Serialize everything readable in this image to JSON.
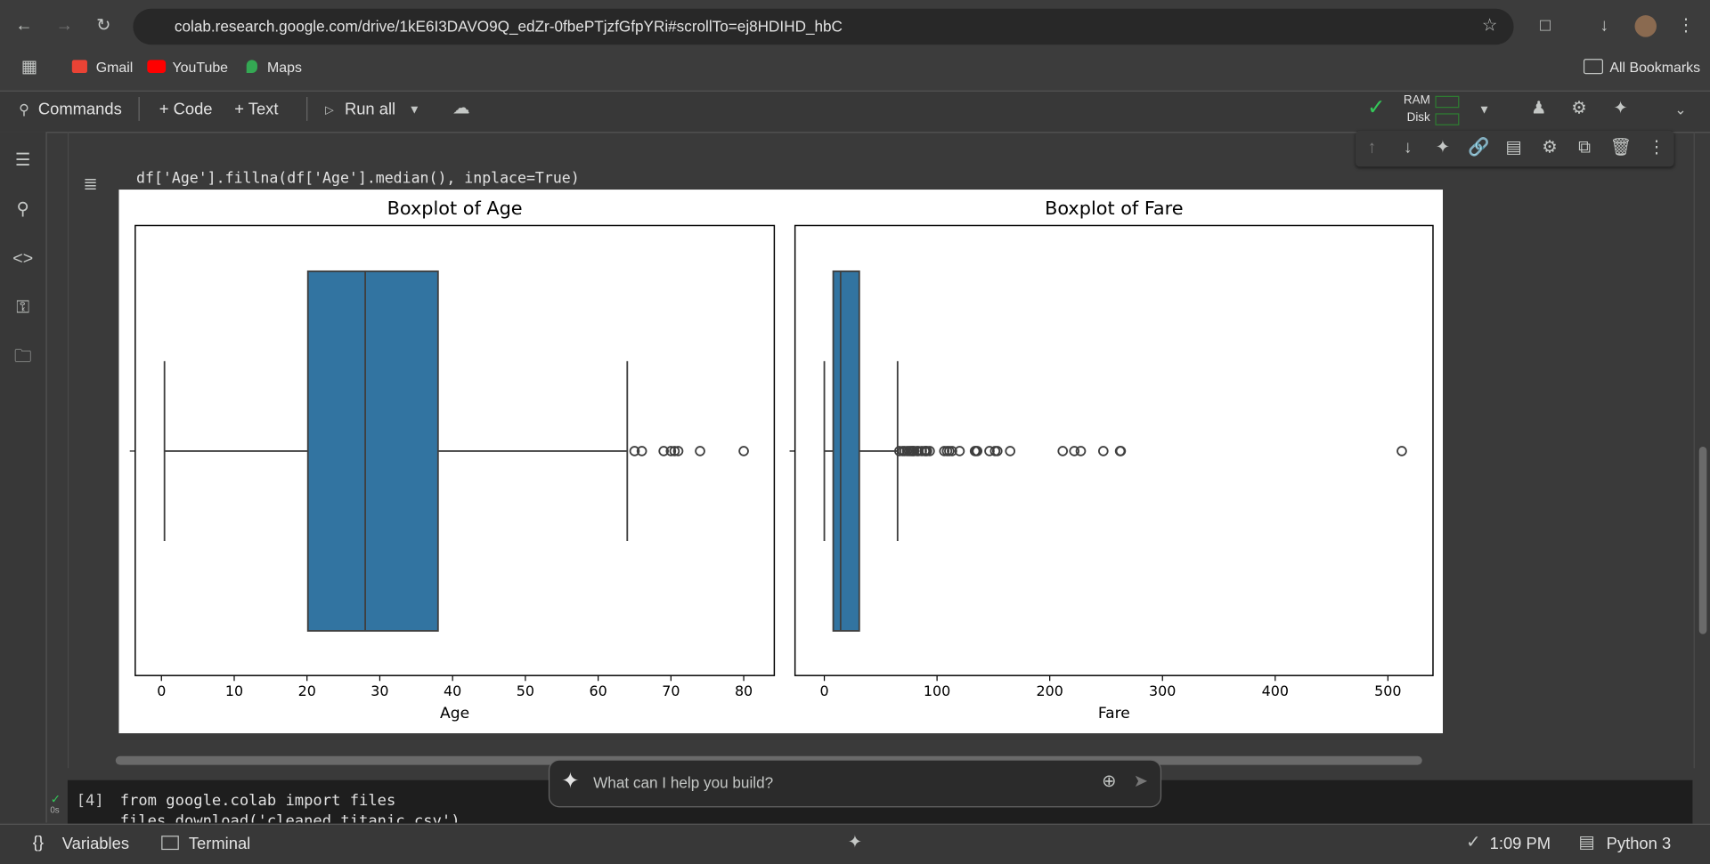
{
  "browser": {
    "url": "colab.research.google.com/drive/1kE6I3DAVO9Q_edZr-0fbePTjzfGfpYRi#scrollTo=ej8HDIHD_hbC",
    "bookmarks": [
      "Gmail",
      "YouTube",
      "Maps"
    ],
    "all_bookmarks": "All Bookmarks"
  },
  "toolbar": {
    "commands": "Commands",
    "add_code": "+ Code",
    "add_text": "+ Text",
    "run_all": "Run all",
    "ram": "RAM",
    "disk": "Disk"
  },
  "cells": [
    {
      "code": "df['Age'].fillna(df['Age'].median(), inplace=True)"
    },
    {
      "prompt": "[4]",
      "status": "0s",
      "lines": [
        "from google.colab import files",
        "files.download('cleaned_titanic.csv')"
      ]
    }
  ],
  "chat": {
    "placeholder": "What can I help you build?"
  },
  "status_bar": {
    "variables": "Variables",
    "terminal": "Terminal",
    "time": "1:09 PM",
    "runtime": "Python 3"
  },
  "chart_data": [
    {
      "type": "boxplot",
      "title": "Boxplot of Age",
      "xlabel": "Age",
      "color": "#3274a1",
      "whislo": 0.42,
      "q1": 20.125,
      "med": 28,
      "q3": 38,
      "whishi": 64,
      "fliers": [
        65,
        66,
        69,
        70,
        70.5,
        71,
        74,
        80
      ],
      "xlim": [
        -3.6,
        84.2
      ],
      "xticks": [
        0,
        10,
        20,
        30,
        40,
        50,
        60,
        70,
        80
      ]
    },
    {
      "type": "boxplot",
      "title": "Boxplot of Fare",
      "xlabel": "Fare",
      "color": "#3274a1",
      "whislo": 0,
      "q1": 7.91,
      "med": 14.45,
      "q3": 31,
      "whishi": 65,
      "fliers": [
        66.6,
        69.55,
        71.28,
        73.5,
        75.25,
        76.73,
        77.96,
        78.85,
        79.65,
        82.17,
        83.48,
        86.5,
        89.1,
        90,
        91.08,
        93.5,
        106.43,
        108.9,
        110.88,
        113.28,
        120,
        133.65,
        134.5,
        135.63,
        146.52,
        151.55,
        153.46,
        164.87,
        211.5,
        221.78,
        227.53,
        247.52,
        262.38,
        263,
        512.33
      ],
      "xlim": [
        -26,
        540
      ],
      "xticks": [
        0,
        100,
        200,
        300,
        400,
        500
      ]
    }
  ]
}
